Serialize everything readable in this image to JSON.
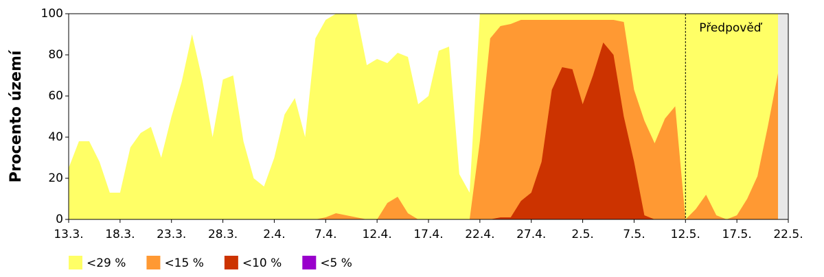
{
  "chart_data": {
    "type": "area",
    "ylabel": "Procento území",
    "categories": [
      "13.3.",
      null,
      null,
      null,
      null,
      "18.3.",
      null,
      null,
      null,
      null,
      "23.3.",
      null,
      null,
      null,
      null,
      "28.3.",
      null,
      null,
      null,
      null,
      "2.4.",
      null,
      null,
      null,
      null,
      "7.4.",
      null,
      null,
      null,
      null,
      "12.4.",
      null,
      null,
      null,
      null,
      "17.4.",
      null,
      null,
      null,
      null,
      "22.4.",
      null,
      null,
      null,
      null,
      "27.4.",
      null,
      null,
      null,
      null,
      "2.5.",
      null,
      null,
      null,
      null,
      "7.5.",
      null,
      null,
      null,
      null,
      "12.5.",
      null,
      null,
      null,
      null,
      "17.5.",
      null,
      null,
      null,
      null,
      "22.5."
    ],
    "series": [
      {
        "name": "<29 %",
        "color": "#ffff66",
        "values": [
          25,
          38,
          38,
          28,
          13,
          13,
          35,
          42,
          45,
          30,
          50,
          67,
          90,
          68,
          40,
          68,
          70,
          38,
          20,
          16,
          30,
          51,
          59,
          40,
          88,
          97,
          100,
          100,
          100,
          75,
          78,
          76,
          81,
          79,
          56,
          60,
          82,
          84,
          22,
          13,
          100,
          100,
          100,
          100,
          100,
          100,
          100,
          100,
          100,
          100,
          100,
          100,
          100,
          100,
          100,
          100,
          100,
          100,
          100,
          100,
          100,
          100,
          100,
          100,
          100,
          100,
          100,
          100,
          100,
          100,
          null
        ]
      },
      {
        "name": "<15 %",
        "color": "#ff9933",
        "values": [
          0,
          0,
          0,
          0,
          0,
          0,
          0,
          0,
          0,
          0,
          0,
          0,
          0,
          0,
          0,
          0,
          0,
          0,
          0,
          0,
          0,
          0,
          0,
          0,
          0,
          1,
          3,
          2,
          1,
          0,
          0,
          8,
          11,
          3,
          0,
          0,
          0,
          0,
          0,
          0,
          38,
          88,
          94,
          95,
          97,
          97,
          97,
          97,
          97,
          97,
          97,
          97,
          97,
          97,
          96,
          63,
          48,
          37,
          49,
          55,
          0,
          5,
          12,
          2,
          0,
          2,
          10,
          21,
          45,
          71,
          null
        ]
      },
      {
        "name": "<10 %",
        "color": "#cc3300",
        "values": [
          0,
          0,
          0,
          0,
          0,
          0,
          0,
          0,
          0,
          0,
          0,
          0,
          0,
          0,
          0,
          0,
          0,
          0,
          0,
          0,
          0,
          0,
          0,
          0,
          0,
          0,
          0,
          0,
          0,
          0,
          0,
          0,
          0,
          0,
          0,
          0,
          0,
          0,
          0,
          0,
          0,
          0,
          1,
          1,
          9,
          13,
          28,
          63,
          74,
          73,
          56,
          70,
          86,
          80,
          50,
          28,
          2,
          0,
          0,
          0,
          0,
          0,
          0,
          0,
          0,
          0,
          0,
          0,
          0,
          0,
          null
        ]
      },
      {
        "name": "<5 %",
        "color": "#9900cc",
        "values": [
          0,
          0,
          0,
          0,
          0,
          0,
          0,
          0,
          0,
          0,
          0,
          0,
          0,
          0,
          0,
          0,
          0,
          0,
          0,
          0,
          0,
          0,
          0,
          0,
          0,
          0,
          0,
          0,
          0,
          0,
          0,
          0,
          0,
          0,
          0,
          0,
          0,
          0,
          0,
          0,
          0,
          0,
          0,
          0,
          0,
          0,
          0,
          0,
          0,
          0,
          0,
          0,
          0,
          0,
          0,
          0,
          0,
          0,
          0,
          0,
          0,
          0,
          0,
          0,
          0,
          0,
          0,
          0,
          0,
          0,
          null
        ]
      }
    ],
    "ylim": [
      0,
      100
    ],
    "yticks": [
      0,
      20,
      40,
      60,
      80,
      100
    ],
    "annotations": [
      {
        "text": "Předpověď",
        "x": "12.5."
      }
    ]
  }
}
